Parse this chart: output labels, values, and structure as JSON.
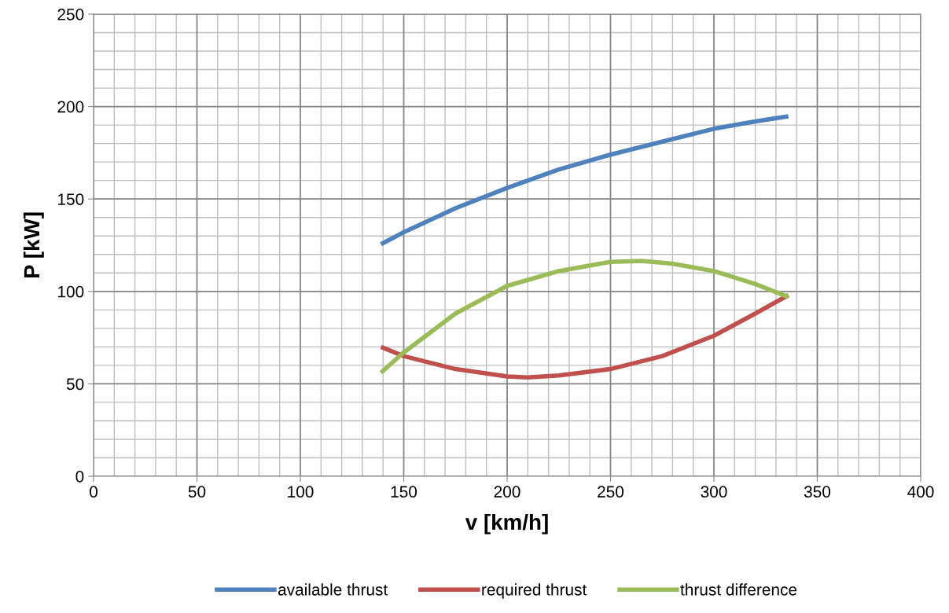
{
  "chart_data": {
    "type": "line",
    "xlabel": "v [km/h]",
    "ylabel": "P [kW]",
    "xlim": [
      0,
      400
    ],
    "xticks": [
      0,
      50,
      100,
      150,
      200,
      250,
      300,
      350,
      400
    ],
    "ylim": [
      0,
      250
    ],
    "yticks": [
      0,
      50,
      100,
      150,
      200,
      250
    ],
    "grid": true,
    "legend": "bottom",
    "marker": "none",
    "line_style": "solid",
    "series": [
      {
        "name": "available thrust",
        "color": "#4f81bd",
        "x": [
          139,
          150,
          175,
          200,
          225,
          250,
          275,
          300,
          320,
          336
        ],
        "values": [
          125.5,
          132,
          145,
          156,
          166,
          174,
          181,
          188,
          192,
          194.7
        ]
      },
      {
        "name": "required thrust",
        "color": "#c0504d",
        "x": [
          139,
          150,
          175,
          200,
          210,
          225,
          250,
          275,
          300,
          320,
          336
        ],
        "values": [
          70,
          65,
          58,
          54,
          53.5,
          54.5,
          58,
          65,
          76,
          88,
          98
        ]
      },
      {
        "name": "thrust difference",
        "color": "#9bbb59",
        "x": [
          139,
          150,
          175,
          200,
          225,
          250,
          265,
          280,
          300,
          320,
          336
        ],
        "values": [
          56,
          67,
          88,
          103,
          111,
          116,
          116.5,
          115,
          111,
          104,
          97
        ]
      }
    ]
  }
}
